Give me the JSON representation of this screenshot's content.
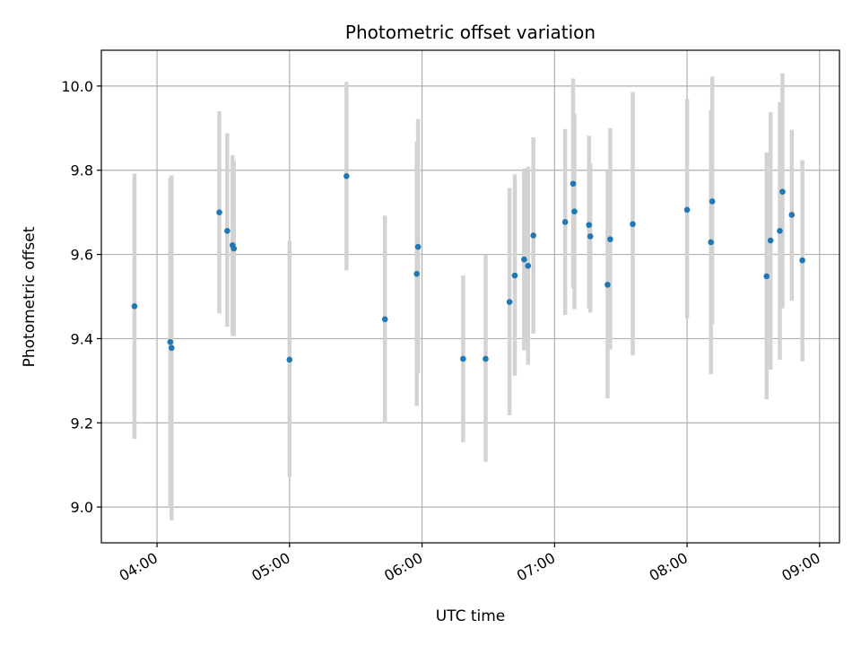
{
  "chart_data": {
    "type": "scatter",
    "title": "Photometric offset variation",
    "xlabel": "UTC time",
    "ylabel": "Photometric offset",
    "x_unit": "UTC hours",
    "xlim": [
      3.58,
      9.15
    ],
    "ylim": [
      8.915,
      10.085
    ],
    "grid": true,
    "x_ticks": [
      {
        "value": 4,
        "label": "04:00"
      },
      {
        "value": 5,
        "label": "05:00"
      },
      {
        "value": 6,
        "label": "06:00"
      },
      {
        "value": 7,
        "label": "07:00"
      },
      {
        "value": 8,
        "label": "08:00"
      },
      {
        "value": 9,
        "label": "09:00"
      }
    ],
    "y_ticks": [
      {
        "value": 9.0,
        "label": "9.0"
      },
      {
        "value": 9.2,
        "label": "9.2"
      },
      {
        "value": 9.4,
        "label": "9.4"
      },
      {
        "value": 9.6,
        "label": "9.6"
      },
      {
        "value": 9.8,
        "label": "9.8"
      },
      {
        "value": 10.0,
        "label": "10.0"
      }
    ],
    "colors": {
      "points": "#1f77b4",
      "errorbars": "#d3d3d3",
      "grid": "#b0b0b0"
    },
    "points": [
      {
        "x": 3.83,
        "y": 9.477,
        "lo": 9.162,
        "hi": 9.792
      },
      {
        "x": 4.1,
        "y": 9.392,
        "lo": 9.002,
        "hi": 9.782
      },
      {
        "x": 4.11,
        "y": 9.378,
        "lo": 8.968,
        "hi": 9.788
      },
      {
        "x": 4.47,
        "y": 9.7,
        "lo": 9.46,
        "hi": 9.94
      },
      {
        "x": 4.53,
        "y": 9.656,
        "lo": 9.428,
        "hi": 9.888
      },
      {
        "x": 4.57,
        "y": 9.622,
        "lo": 9.408,
        "hi": 9.836
      },
      {
        "x": 4.58,
        "y": 9.614,
        "lo": 9.406,
        "hi": 9.822
      },
      {
        "x": 5.0,
        "y": 9.35,
        "lo": 9.072,
        "hi": 9.632
      },
      {
        "x": 5.43,
        "y": 9.786,
        "lo": 9.562,
        "hi": 10.01
      },
      {
        "x": 5.72,
        "y": 9.446,
        "lo": 9.2,
        "hi": 9.692
      },
      {
        "x": 5.96,
        "y": 9.554,
        "lo": 9.24,
        "hi": 9.868
      },
      {
        "x": 5.97,
        "y": 9.618,
        "lo": 9.318,
        "hi": 9.922
      },
      {
        "x": 6.31,
        "y": 9.352,
        "lo": 9.154,
        "hi": 9.55
      },
      {
        "x": 6.48,
        "y": 9.352,
        "lo": 9.108,
        "hi": 9.6
      },
      {
        "x": 6.66,
        "y": 9.487,
        "lo": 9.218,
        "hi": 9.758
      },
      {
        "x": 6.7,
        "y": 9.55,
        "lo": 9.312,
        "hi": 9.79
      },
      {
        "x": 6.77,
        "y": 9.588,
        "lo": 9.372,
        "hi": 9.804
      },
      {
        "x": 6.8,
        "y": 9.573,
        "lo": 9.338,
        "hi": 9.808
      },
      {
        "x": 6.84,
        "y": 9.645,
        "lo": 9.412,
        "hi": 9.878
      },
      {
        "x": 7.08,
        "y": 9.677,
        "lo": 9.456,
        "hi": 9.898
      },
      {
        "x": 7.14,
        "y": 9.768,
        "lo": 9.52,
        "hi": 10.018
      },
      {
        "x": 7.15,
        "y": 9.702,
        "lo": 9.47,
        "hi": 9.934
      },
      {
        "x": 7.26,
        "y": 9.67,
        "lo": 9.472,
        "hi": 9.882
      },
      {
        "x": 7.27,
        "y": 9.643,
        "lo": 9.462,
        "hi": 9.816
      },
      {
        "x": 7.4,
        "y": 9.528,
        "lo": 9.258,
        "hi": 9.798
      },
      {
        "x": 7.42,
        "y": 9.636,
        "lo": 9.374,
        "hi": 9.9
      },
      {
        "x": 7.59,
        "y": 9.672,
        "lo": 9.36,
        "hi": 9.986
      },
      {
        "x": 8.0,
        "y": 9.706,
        "lo": 9.448,
        "hi": 9.97
      },
      {
        "x": 8.18,
        "y": 9.629,
        "lo": 9.316,
        "hi": 9.942
      },
      {
        "x": 8.19,
        "y": 9.726,
        "lo": 9.434,
        "hi": 10.022
      },
      {
        "x": 8.6,
        "y": 9.548,
        "lo": 9.256,
        "hi": 9.842
      },
      {
        "x": 8.63,
        "y": 9.633,
        "lo": 9.326,
        "hi": 9.938
      },
      {
        "x": 8.7,
        "y": 9.656,
        "lo": 9.35,
        "hi": 9.962
      },
      {
        "x": 8.72,
        "y": 9.749,
        "lo": 9.472,
        "hi": 10.03
      },
      {
        "x": 8.79,
        "y": 9.694,
        "lo": 9.49,
        "hi": 9.896
      },
      {
        "x": 8.87,
        "y": 9.586,
        "lo": 9.346,
        "hi": 9.824
      }
    ]
  }
}
